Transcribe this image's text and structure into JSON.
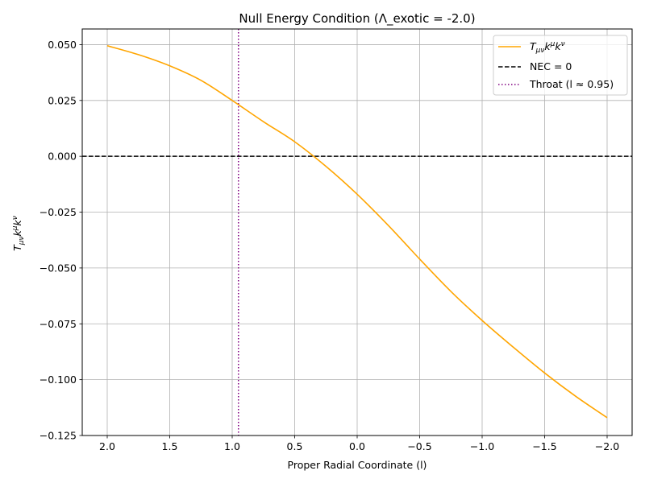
{
  "chart_data": {
    "type": "line",
    "title": "Null Energy Condition (Λ_exotic = -2.0)",
    "xlabel": "Proper Radial Coordinate (l)",
    "ylabel": "T_{μν}k^μk^ν",
    "xlim": [
      2.2,
      -2.2
    ],
    "ylim": [
      -0.125,
      0.057
    ],
    "x_inverted": true,
    "grid": true,
    "legend_position": "top-right",
    "x_ticks": [
      2.0,
      1.5,
      1.0,
      0.5,
      0.0,
      -0.5,
      -1.0,
      -1.5,
      -2.0
    ],
    "x_tick_labels": [
      "2.0",
      "1.5",
      "1.0",
      "0.5",
      "0.0",
      "−0.5",
      "−1.0",
      "−1.5",
      "−2.0"
    ],
    "y_ticks": [
      0.05,
      0.025,
      0.0,
      -0.025,
      -0.05,
      -0.075,
      -0.1,
      -0.125
    ],
    "y_tick_labels": [
      "0.050",
      "0.025",
      "0.000",
      "−0.025",
      "−0.050",
      "−0.075",
      "−0.100",
      "−0.125"
    ],
    "series": [
      {
        "name": "T_{μν}k^μk^ν",
        "color": "#ffa500",
        "style": "solid",
        "x": [
          2.0,
          1.75,
          1.5,
          1.25,
          1.0,
          0.75,
          0.5,
          0.25,
          0.0,
          -0.25,
          -0.5,
          -0.75,
          -1.0,
          -1.25,
          -1.5,
          -1.75,
          -2.0
        ],
        "y": [
          0.0495,
          0.0455,
          0.0405,
          0.034,
          0.025,
          0.0155,
          0.0065,
          -0.0045,
          -0.017,
          -0.031,
          -0.046,
          -0.0605,
          -0.0735,
          -0.0855,
          -0.097,
          -0.1075,
          -0.117
        ]
      }
    ],
    "reference_lines": [
      {
        "name": "NEC = 0",
        "orientation": "horizontal",
        "value": 0.0,
        "color": "#000000",
        "style": "dashed"
      },
      {
        "name": "Throat (l ≈ 0.95)",
        "orientation": "vertical",
        "value": 0.95,
        "color": "#800080",
        "style": "dotted"
      }
    ]
  }
}
